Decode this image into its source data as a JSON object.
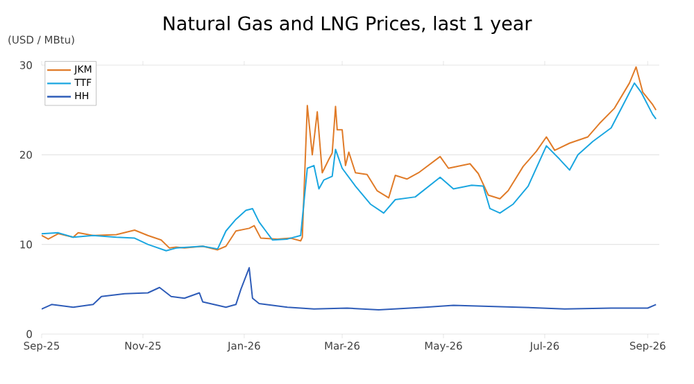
{
  "chart_data": {
    "type": "line",
    "title": "Natural Gas and LNG Prices, last 1 year",
    "ylabel": "(USD / MBtu)",
    "xlim": [
      "2025-09-01",
      "2026-09-08"
    ],
    "ylim": [
      0,
      30
    ],
    "yticks": [
      0,
      10,
      20,
      30
    ],
    "xticks": [
      {
        "value": "2025-09-01",
        "label": "Sep-25"
      },
      {
        "value": "2025-11-01",
        "label": "Nov-25"
      },
      {
        "value": "2026-01-01",
        "label": "Jan-26"
      },
      {
        "value": "2026-03-01",
        "label": "Mar-26"
      },
      {
        "value": "2026-05-01",
        "label": "May-26"
      },
      {
        "value": "2026-07-01",
        "label": "Jul-26"
      },
      {
        "value": "2026-09-01",
        "label": "Sep-26"
      }
    ],
    "grid": "y",
    "legend": "top left",
    "series": [
      {
        "name": "JKM",
        "color": "#e07b28",
        "x": [
          "2025-09-01",
          "2025-09-05",
          "2025-09-11",
          "2025-09-20",
          "2025-09-23",
          "2025-10-02",
          "2025-10-16",
          "2025-10-27",
          "2025-11-04",
          "2025-11-12",
          "2025-11-17",
          "2025-11-21",
          "2025-11-26",
          "2025-12-07",
          "2025-12-16",
          "2025-12-21",
          "2025-12-27",
          "2026-01-04",
          "2026-01-07",
          "2026-01-11",
          "2026-01-21",
          "2026-01-29",
          "2026-02-04",
          "2026-02-05",
          "2026-02-08",
          "2026-02-11",
          "2026-02-14",
          "2026-02-17",
          "2026-02-21",
          "2026-02-23",
          "2026-02-25",
          "2026-02-26",
          "2026-03-01",
          "2026-03-03",
          "2026-03-05",
          "2026-03-09",
          "2026-03-16",
          "2026-03-22",
          "2026-03-29",
          "2026-04-02",
          "2026-04-09",
          "2026-04-16",
          "2026-04-29",
          "2026-05-04",
          "2026-05-17",
          "2026-05-22",
          "2026-05-28",
          "2026-06-04",
          "2026-06-09",
          "2026-06-18",
          "2026-06-26",
          "2026-07-02",
          "2026-07-07",
          "2026-07-16",
          "2026-07-27",
          "2026-08-03",
          "2026-08-12",
          "2026-08-21",
          "2026-08-25",
          "2026-08-29",
          "2026-09-04",
          "2026-09-06"
        ],
        "values": [
          11.0,
          10.6,
          11.2,
          10.8,
          11.3,
          11.0,
          11.1,
          11.6,
          11.0,
          10.5,
          9.6,
          9.7,
          9.6,
          9.8,
          9.4,
          9.8,
          11.5,
          11.8,
          12.1,
          10.7,
          10.6,
          10.7,
          10.4,
          10.8,
          25.5,
          20.0,
          24.8,
          18.0,
          19.5,
          20.2,
          25.4,
          22.8,
          22.8,
          18.8,
          20.3,
          18.0,
          17.8,
          16.0,
          15.2,
          17.7,
          17.3,
          18.0,
          19.8,
          18.5,
          19.0,
          17.9,
          15.5,
          15.1,
          16.0,
          18.7,
          20.4,
          22.0,
          20.5,
          21.3,
          22.0,
          23.5,
          25.2,
          28.0,
          29.8,
          27.0,
          25.6,
          25.0
        ]
      },
      {
        "name": "TTF",
        "color": "#1aa6e0",
        "x": [
          "2025-09-01",
          "2025-09-11",
          "2025-09-20",
          "2025-10-02",
          "2025-10-16",
          "2025-10-27",
          "2025-11-04",
          "2025-11-15",
          "2025-11-21",
          "2025-12-07",
          "2025-12-16",
          "2025-12-21",
          "2025-12-27",
          "2026-01-02",
          "2026-01-06",
          "2026-01-10",
          "2026-01-14",
          "2026-01-18",
          "2026-01-27",
          "2026-02-04",
          "2026-02-08",
          "2026-02-12",
          "2026-02-15",
          "2026-02-18",
          "2026-02-23",
          "2026-02-25",
          "2026-03-01",
          "2026-03-09",
          "2026-03-18",
          "2026-03-26",
          "2026-04-02",
          "2026-04-14",
          "2026-04-29",
          "2026-05-07",
          "2026-05-18",
          "2026-05-25",
          "2026-05-29",
          "2026-06-04",
          "2026-06-12",
          "2026-06-21",
          "2026-07-02",
          "2026-07-10",
          "2026-07-16",
          "2026-07-21",
          "2026-07-30",
          "2026-08-10",
          "2026-08-17",
          "2026-08-24",
          "2026-08-28",
          "2026-09-04",
          "2026-09-06"
        ],
        "values": [
          11.2,
          11.3,
          10.8,
          11.0,
          10.8,
          10.7,
          10.0,
          9.3,
          9.6,
          9.8,
          9.5,
          11.5,
          12.8,
          13.8,
          14.0,
          12.5,
          11.5,
          10.5,
          10.6,
          11.0,
          18.5,
          18.8,
          16.2,
          17.2,
          17.6,
          20.6,
          18.5,
          16.5,
          14.5,
          13.5,
          15.0,
          15.3,
          17.5,
          16.2,
          16.6,
          16.5,
          14.0,
          13.5,
          14.5,
          16.5,
          21.0,
          19.5,
          18.3,
          20.0,
          21.5,
          23.0,
          25.5,
          28.0,
          27.0,
          24.5,
          24.0
        ]
      },
      {
        "name": "HH",
        "color": "#2e5cb8",
        "x": [
          "2025-09-01",
          "2025-09-07",
          "2025-09-20",
          "2025-10-02",
          "2025-10-07",
          "2025-10-21",
          "2025-11-04",
          "2025-11-11",
          "2025-11-18",
          "2025-11-26",
          "2025-12-05",
          "2025-12-07",
          "2025-12-21",
          "2025-12-27",
          "2025-12-30",
          "2026-01-04",
          "2026-01-06",
          "2026-01-10",
          "2026-01-27",
          "2026-02-12",
          "2026-03-04",
          "2026-03-23",
          "2026-04-20",
          "2026-05-07",
          "2026-06-15",
          "2026-07-13",
          "2026-08-10",
          "2026-09-01",
          "2026-09-06"
        ],
        "values": [
          2.8,
          3.3,
          3.0,
          3.3,
          4.2,
          4.5,
          4.6,
          5.2,
          4.2,
          4.0,
          4.6,
          3.6,
          3.0,
          3.3,
          5.0,
          7.4,
          4.0,
          3.4,
          3.0,
          2.8,
          2.9,
          2.7,
          3.0,
          3.2,
          3.0,
          2.8,
          2.9,
          2.9,
          3.3
        ]
      }
    ]
  }
}
